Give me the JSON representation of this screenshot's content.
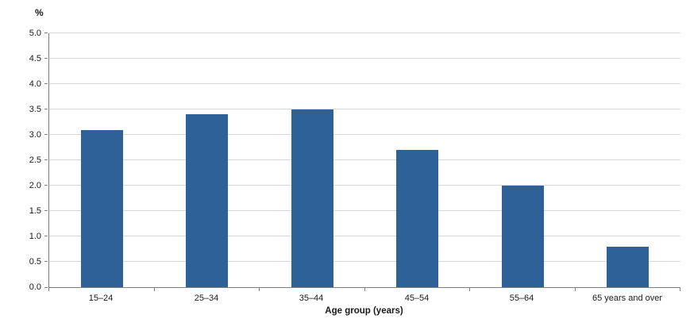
{
  "chart_data": {
    "type": "bar",
    "title": "",
    "categories": [
      "15–24",
      "25–34",
      "35–44",
      "45–54",
      "55–64",
      "65 years and over"
    ],
    "values": [
      3.1,
      3.4,
      3.5,
      2.7,
      2.0,
      0.8
    ],
    "xlabel": "Age group (years)",
    "ylabel": "%",
    "ylim": [
      0,
      5.0
    ],
    "ytick_step": 0.5,
    "ytick_labels": [
      "0.0",
      "0.5",
      "1.0",
      "1.5",
      "2.0",
      "2.5",
      "3.0",
      "3.5",
      "4.0",
      "4.5",
      "5.0"
    ],
    "grid": true,
    "legend": "none",
    "colors": {
      "bar": "#2f6199",
      "gridline": "#d9d9d9",
      "axis": "#7f7f7f",
      "text": "#1a1a1a"
    }
  }
}
